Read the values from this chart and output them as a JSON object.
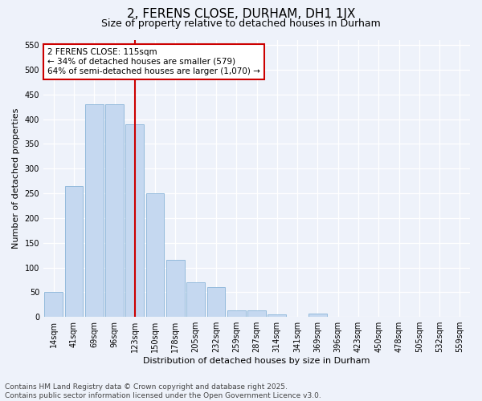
{
  "title": "2, FERENS CLOSE, DURHAM, DH1 1JX",
  "subtitle": "Size of property relative to detached houses in Durham",
  "xlabel": "Distribution of detached houses by size in Durham",
  "ylabel": "Number of detached properties",
  "categories": [
    "14sqm",
    "41sqm",
    "69sqm",
    "96sqm",
    "123sqm",
    "150sqm",
    "178sqm",
    "205sqm",
    "232sqm",
    "259sqm",
    "287sqm",
    "314sqm",
    "341sqm",
    "369sqm",
    "396sqm",
    "423sqm",
    "450sqm",
    "478sqm",
    "505sqm",
    "532sqm",
    "559sqm"
  ],
  "values": [
    50,
    265,
    430,
    430,
    390,
    250,
    115,
    70,
    60,
    14,
    14,
    6,
    0,
    7,
    0,
    0,
    0,
    0,
    0,
    0,
    0
  ],
  "bar_color": "#c5d8f0",
  "bar_edge_color": "#88b4d8",
  "vline_x": 4.0,
  "vline_color": "#cc0000",
  "annotation_text": "2 FERENS CLOSE: 115sqm\n← 34% of detached houses are smaller (579)\n64% of semi-detached houses are larger (1,070) →",
  "annotation_box_color": "#ffffff",
  "annotation_box_edge": "#cc0000",
  "ylim": [
    0,
    560
  ],
  "yticks": [
    0,
    50,
    100,
    150,
    200,
    250,
    300,
    350,
    400,
    450,
    500,
    550
  ],
  "footer": "Contains HM Land Registry data © Crown copyright and database right 2025.\nContains public sector information licensed under the Open Government Licence v3.0.",
  "background_color": "#eef2fa",
  "grid_color": "#ffffff",
  "title_fontsize": 11,
  "subtitle_fontsize": 9,
  "axis_label_fontsize": 8,
  "tick_fontsize": 7,
  "footer_fontsize": 6.5
}
